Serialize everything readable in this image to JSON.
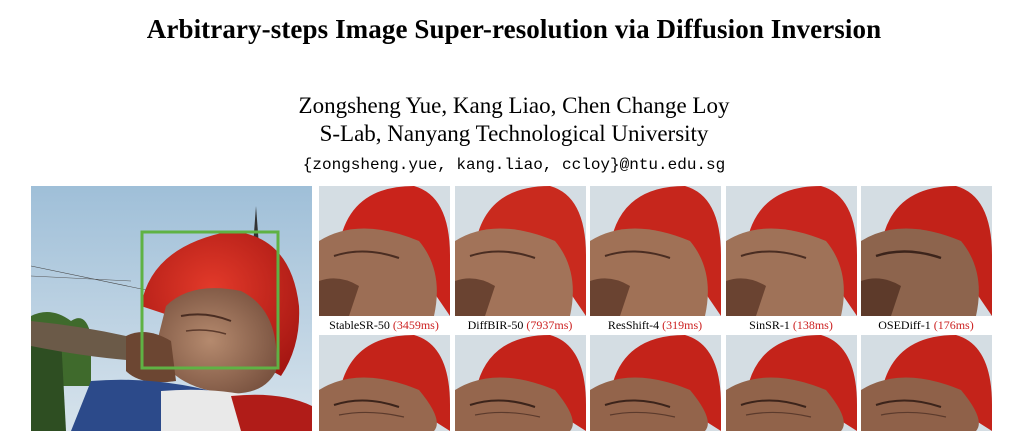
{
  "paper": {
    "title": "Arbitrary-steps Image Super-resolution via Diffusion Inversion",
    "authors": "Zongsheng Yue,  Kang Liao,  Chen Change Loy",
    "affiliation": "S-Lab, Nanyang Technological University",
    "emails": "{zongsheng.yue, kang.liao, ccloy}@ntu.edu.sg"
  },
  "figure": {
    "highlight_color": "#5fb244",
    "time_color": "#cc2222",
    "methods": [
      {
        "name": "StableSR-50",
        "time": "(3459ms)"
      },
      {
        "name": "DiffBIR-50",
        "time": "(7937ms)"
      },
      {
        "name": "ResShift-4",
        "time": "(319ms)"
      },
      {
        "name": "SinSR-1",
        "time": "(138ms)"
      },
      {
        "name": "OSEDiff-1",
        "time": "(176ms)"
      }
    ]
  }
}
